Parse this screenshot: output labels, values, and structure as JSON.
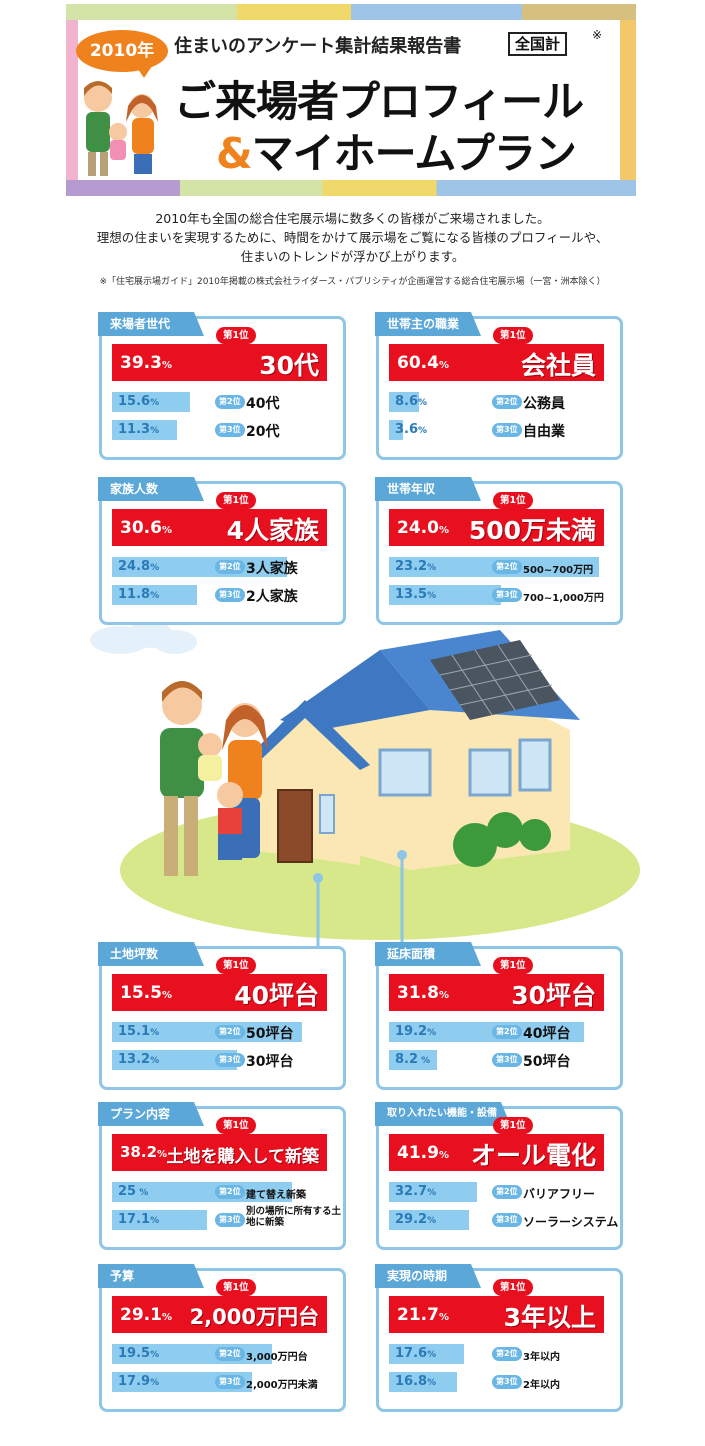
{
  "header": {
    "year": "2010年",
    "report_title": "住まいのアンケート集計結果報告書",
    "national": "全国計",
    "note_mark": "※",
    "title_line1": "ご来場者プロフィール",
    "amp": "&",
    "title_line2": "マイホームプラン"
  },
  "intro": {
    "line1": "2010年も全国の総合住宅展示場に数多くの皆様がご来場されました。",
    "line2": "理想の住まいを実現するために、時間をかけて展示場をご覧になる皆様のプロフィールや、",
    "line3": "住まいのトレンドが浮かび上がります。",
    "footnote": "※「住宅展示場ガイド」2010年掲載の株式会社ライダース・パブリシティが企画運営する総合住宅展示場（一宮・洲本除く）"
  },
  "rank_labels": {
    "r1": "第1位",
    "r2": "第2位",
    "r3": "第3位"
  },
  "cards": {
    "generation": {
      "title": "来場者世代",
      "first": {
        "pct": "39.3",
        "label": "30代"
      },
      "second": {
        "pct": "15.6",
        "label": "40代"
      },
      "third": {
        "pct": "11.3",
        "label": "20代"
      }
    },
    "occupation": {
      "title": "世帯主の職業",
      "first": {
        "pct": "60.4",
        "label": "会社員"
      },
      "second": {
        "pct": "8.6",
        "label": "公務員"
      },
      "third": {
        "pct": "3.6",
        "label": "自由業"
      }
    },
    "family": {
      "title": "家族人数",
      "first": {
        "pct": "30.6",
        "label": "4人家族"
      },
      "second": {
        "pct": "24.8",
        "label": "3人家族"
      },
      "third": {
        "pct": "11.8",
        "label": "2人家族"
      }
    },
    "income": {
      "title": "世帯年収",
      "first": {
        "pct": "24.0",
        "label": "500万未満"
      },
      "second": {
        "pct": "23.2",
        "label": "500~700万円"
      },
      "third": {
        "pct": "13.5",
        "label": "700~1,000万円"
      }
    },
    "land": {
      "title": "土地坪数",
      "first": {
        "pct": "15.5",
        "label": "40坪台"
      },
      "second": {
        "pct": "15.1",
        "label": "50坪台"
      },
      "third": {
        "pct": "13.2",
        "label": "30坪台"
      }
    },
    "floor": {
      "title": "延床面積",
      "first": {
        "pct": "31.8",
        "label": "30坪台"
      },
      "second": {
        "pct": "19.2",
        "label": "40坪台"
      },
      "third": {
        "pct": "8.2",
        "label": "50坪台"
      }
    },
    "plan": {
      "title": "プラン内容",
      "first": {
        "pct": "38.2",
        "label": "土地を購入して新築"
      },
      "second": {
        "pct": "25",
        "label": "建て替え新築"
      },
      "third": {
        "pct": "17.1",
        "label": "別の場所に所有する土地に新築"
      }
    },
    "equipment": {
      "title": "取り入れたい機能・設備",
      "first": {
        "pct": "41.9",
        "label": "オール電化"
      },
      "second": {
        "pct": "32.7",
        "label": "バリアフリー"
      },
      "third": {
        "pct": "29.2",
        "label": "ソーラーシステム"
      }
    },
    "budget": {
      "title": "予算",
      "first": {
        "pct": "29.1",
        "label": "2,000万円台"
      },
      "second": {
        "pct": "19.5",
        "label": "3,000万円台"
      },
      "third": {
        "pct": "17.9",
        "label": "2,000万円未満"
      }
    },
    "timing": {
      "title": "実現の時期",
      "first": {
        "pct": "21.7",
        "label": "3年以上"
      },
      "second": {
        "pct": "17.6",
        "label": "3年以内"
      },
      "third": {
        "pct": "16.8",
        "label": "2年以内"
      }
    }
  },
  "colors": {
    "rank1": "#e8101e",
    "tab": "#5ba7d8",
    "card_border": "#8fc5e6",
    "accent": "#f0821e"
  }
}
